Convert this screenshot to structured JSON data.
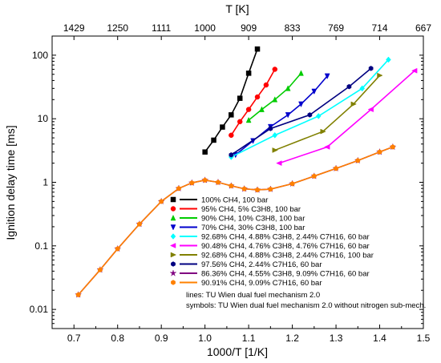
{
  "chart_data": {
    "type": "line",
    "xlabel": "1000/T [1/K]",
    "ylabel": "Ignition delay time [ms]",
    "top_axis_label": "T [K]",
    "xlim": [
      0.65,
      1.5
    ],
    "ylim": [
      0.005,
      200
    ],
    "y_scale": "log",
    "grid": false,
    "legend_position": "lower-right",
    "x_ticks": [
      "0.7",
      "0.8",
      "0.9",
      "1.0",
      "1.1",
      "1.2",
      "1.3",
      "1.4",
      "1.5"
    ],
    "x_tick_values": [
      0.7,
      0.8,
      0.9,
      1.0,
      1.1,
      1.2,
      1.3,
      1.4,
      1.5
    ],
    "y_ticks": [
      "0.01",
      "0.1",
      "1",
      "10",
      "100"
    ],
    "y_tick_values": [
      0.01,
      0.1,
      1,
      10,
      100
    ],
    "top_ticks": [
      "1429",
      "1250",
      "1111",
      "1000",
      "909",
      "833",
      "769",
      "714",
      "667"
    ],
    "top_tick_values": [
      0.7,
      0.8,
      0.9,
      1.0,
      1.1,
      1.2,
      1.3,
      1.4,
      1.5
    ],
    "notes": [
      "lines: TU Wien dual fuel mechanism 2.0",
      "symbols: TU Wien dual fuel mechanism 2.0 without nitrogen sub-mech."
    ],
    "series": [
      {
        "name": "100% CH4, 100 bar",
        "color": "#000000",
        "marker": "square",
        "x": [
          1.0,
          1.02,
          1.04,
          1.06,
          1.08,
          1.1,
          1.12
        ],
        "y": [
          3.0,
          4.6,
          7.4,
          11.5,
          21.0,
          52.0,
          125.0
        ]
      },
      {
        "name": "95% CH4, 5% C3H8, 100 bar",
        "color": "#ff0000",
        "marker": "circle",
        "x": [
          1.06,
          1.08,
          1.1,
          1.12,
          1.14,
          1.16
        ],
        "y": [
          5.5,
          9.0,
          14.0,
          22.0,
          34.0,
          60.0
        ]
      },
      {
        "name": "90% CH4, 10% C3H8, 100 bar",
        "color": "#00cc00",
        "marker": "triangle-up",
        "x": [
          1.1,
          1.13,
          1.16,
          1.19,
          1.22
        ],
        "y": [
          9.5,
          14.0,
          20.0,
          30.0,
          52.0
        ]
      },
      {
        "name": "70% CH4, 30% C3H8, 100 bar",
        "color": "#0000cc",
        "marker": "triangle-down",
        "x": [
          1.07,
          1.11,
          1.15,
          1.19,
          1.22,
          1.25,
          1.28
        ],
        "y": [
          2.7,
          4.5,
          7.5,
          11.5,
          17.0,
          27.0,
          47.0
        ]
      },
      {
        "name": "92.68% CH4, 4.88% C3H8, 2.44% C7H16, 60 bar",
        "color": "#00ffff",
        "marker": "diamond",
        "x": [
          1.06,
          1.16,
          1.26,
          1.36,
          1.42
        ],
        "y": [
          2.5,
          5.5,
          11.0,
          30.0,
          85.0
        ]
      },
      {
        "name": "90.48% CH4, 4.76% C3H8, 4.76% C7H16, 60 bar",
        "color": "#ff00ff",
        "marker": "triangle-left",
        "x": [
          1.17,
          1.28,
          1.38,
          1.48
        ],
        "y": [
          2.0,
          3.6,
          14.0,
          57.0
        ]
      },
      {
        "name": "92.68% CH4, 4.88% C3H8, 2.44% C7H16, 100 bar",
        "color": "#808000",
        "marker": "triangle-right",
        "x": [
          1.16,
          1.27,
          1.34,
          1.4
        ],
        "y": [
          3.2,
          6.3,
          17.0,
          48.0
        ]
      },
      {
        "name": "97.56% CH4, 2.44% C7H16, 60 bar",
        "color": "#000080",
        "marker": "hexagon",
        "x": [
          1.06,
          1.15,
          1.24,
          1.33,
          1.38
        ],
        "y": [
          2.7,
          7.0,
          11.5,
          32.0,
          62.0
        ]
      },
      {
        "name": "86.36% CH4, 4.55% C3H8, 9.09% C7H16, 60 bar",
        "color": "#800080",
        "marker": "star",
        "x": [
          0.71,
          0.76,
          0.8,
          0.85,
          0.9,
          0.94,
          0.97,
          1.0,
          1.03,
          1.06,
          1.09,
          1.12,
          1.15,
          1.2,
          1.25,
          1.3,
          1.35,
          1.4,
          1.43
        ],
        "y": [
          0.017,
          0.042,
          0.09,
          0.22,
          0.5,
          0.8,
          0.98,
          1.08,
          1.0,
          0.88,
          0.79,
          0.76,
          0.78,
          0.95,
          1.25,
          1.65,
          2.2,
          3.0,
          3.6
        ]
      },
      {
        "name": "90.91% CH4, 9.09% C7H16, 60 bar",
        "color": "#ff8000",
        "marker": "hexagon",
        "x": [
          0.71,
          0.76,
          0.8,
          0.85,
          0.9,
          0.94,
          0.97,
          1.0,
          1.03,
          1.06,
          1.09,
          1.12,
          1.15,
          1.2,
          1.25,
          1.3,
          1.35,
          1.4,
          1.43
        ],
        "y": [
          0.017,
          0.042,
          0.09,
          0.22,
          0.5,
          0.8,
          0.98,
          1.08,
          1.0,
          0.88,
          0.79,
          0.76,
          0.78,
          0.95,
          1.25,
          1.65,
          2.2,
          3.0,
          3.6
        ]
      }
    ]
  }
}
